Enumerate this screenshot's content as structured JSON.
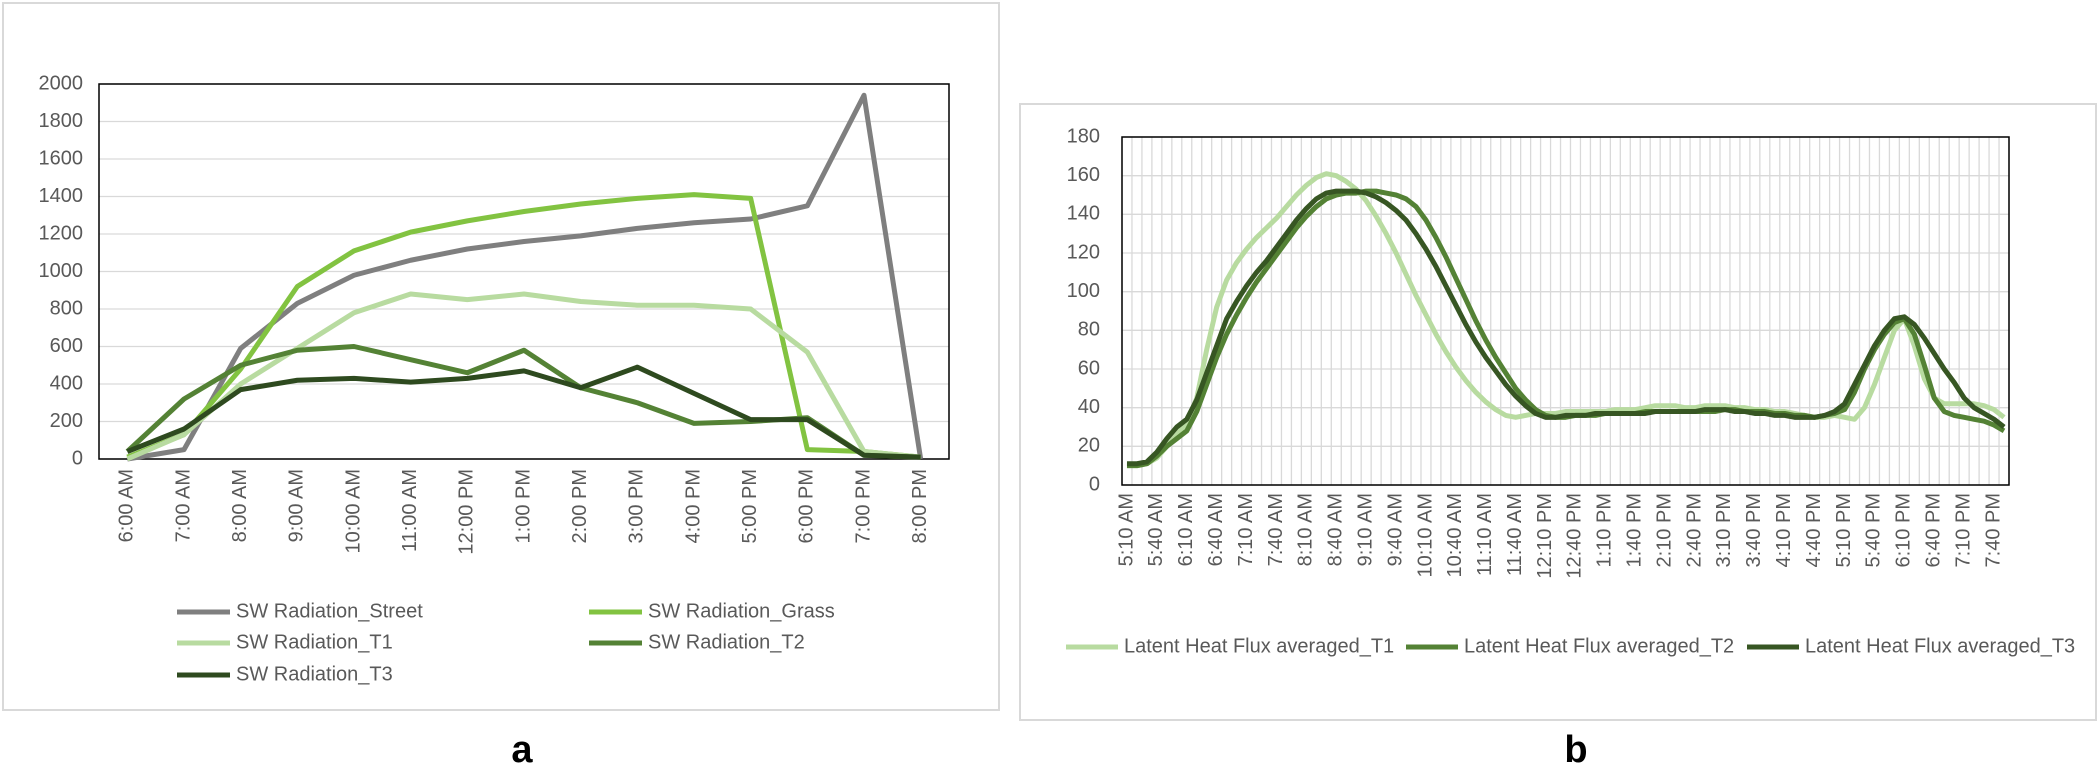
{
  "chart_data": [
    {
      "type": "line",
      "categories": [
        "6:00 AM",
        "7:00 AM",
        "8:00 AM",
        "9:00 AM",
        "10:00 AM",
        "11:00 AM",
        "12:00 PM",
        "1:00 PM",
        "2:00 PM",
        "3:00 PM",
        "4:00 PM",
        "5:00 PM",
        "6:00 PM",
        "7:00 PM",
        "8:00 PM"
      ],
      "series": [
        {
          "name": "SW Radiation_Street",
          "color": "#7f7f7f",
          "values": [
            0,
            50,
            590,
            830,
            980,
            1060,
            1120,
            1160,
            1190,
            1230,
            1260,
            1280,
            1350,
            1940,
            0
          ]
        },
        {
          "name": "SW Radiation_Grass",
          "color": "#82c341",
          "values": [
            10,
            130,
            480,
            920,
            1110,
            1210,
            1270,
            1320,
            1360,
            1390,
            1410,
            1390,
            50,
            40,
            10
          ]
        },
        {
          "name": "SW Radiation_T1",
          "color": "#b8dba0",
          "values": [
            0,
            130,
            400,
            590,
            780,
            880,
            850,
            880,
            840,
            820,
            820,
            800,
            570,
            40,
            10
          ]
        },
        {
          "name": "SW Radiation_T2",
          "color": "#548235",
          "values": [
            40,
            320,
            500,
            580,
            600,
            530,
            460,
            580,
            380,
            300,
            190,
            200,
            220,
            20,
            10
          ]
        },
        {
          "name": "SW Radiation_T3",
          "color": "#2e4a1f",
          "values": [
            40,
            160,
            370,
            420,
            430,
            410,
            430,
            470,
            380,
            490,
            350,
            210,
            210,
            20,
            10
          ]
        }
      ],
      "ylim": [
        0,
        2000
      ],
      "yticks": [
        0,
        200,
        400,
        600,
        800,
        1000,
        1200,
        1400,
        1600,
        1800,
        2000
      ],
      "grid": true,
      "legend": "bottom"
    },
    {
      "type": "line",
      "categories": [
        "5:10 AM",
        null,
        null,
        "5:40 AM",
        null,
        null,
        "6:10 AM",
        null,
        null,
        "6:40 AM",
        null,
        null,
        "7:10 AM",
        null,
        null,
        "7:40 AM",
        null,
        null,
        "8:10 AM",
        null,
        null,
        "8:40 AM",
        null,
        null,
        "9:10 AM",
        null,
        null,
        "9:40 AM",
        null,
        null,
        "10:10 AM",
        null,
        null,
        "10:40 AM",
        null,
        null,
        "11:10 AM",
        null,
        null,
        "11:40 AM",
        null,
        null,
        "12:10 PM",
        null,
        null,
        "12:40 PM",
        null,
        null,
        "1:10 PM",
        null,
        null,
        "1:40 PM",
        null,
        null,
        "2:10 PM",
        null,
        null,
        "2:40 PM",
        null,
        null,
        "3:10 PM",
        null,
        null,
        "3:40 PM",
        null,
        null,
        "4:10 PM",
        null,
        null,
        "4:40 PM",
        null,
        null,
        "5:10 PM",
        null,
        null,
        "5:40 PM",
        null,
        null,
        "6:10 PM",
        null,
        null,
        "6:40 PM",
        null,
        null,
        "7:10 PM",
        null,
        null,
        "7:40 PM",
        null
      ],
      "series": [
        {
          "name": "Latent Heat Flux averaged_T1",
          "color": "#b8dba0",
          "values": [
            10,
            10,
            11,
            14,
            20,
            26,
            32,
            45,
            70,
            92,
            106,
            115,
            122,
            128,
            133,
            138,
            144,
            150,
            155,
            159,
            161,
            160,
            157,
            153,
            147,
            139,
            130,
            120,
            109,
            98,
            88,
            78,
            69,
            61,
            54,
            48,
            43,
            39,
            36,
            35,
            36,
            37,
            37,
            37,
            38,
            38,
            38,
            38,
            38,
            39,
            39,
            39,
            40,
            41,
            41,
            41,
            40,
            40,
            41,
            41,
            41,
            40,
            40,
            39,
            39,
            38,
            38,
            37,
            36,
            35,
            35,
            36,
            35,
            34,
            40,
            52,
            66,
            80,
            86,
            72,
            55,
            45,
            42,
            42,
            42,
            42,
            41,
            39,
            35
          ]
        },
        {
          "name": "Latent Heat Flux averaged_T2",
          "color": "#548235",
          "values": [
            10,
            10,
            11,
            15,
            20,
            24,
            28,
            38,
            52,
            66,
            78,
            88,
            97,
            105,
            112,
            119,
            126,
            133,
            139,
            144,
            148,
            150,
            151,
            151,
            152,
            152,
            151,
            150,
            148,
            144,
            137,
            128,
            118,
            107,
            96,
            85,
            75,
            66,
            58,
            50,
            44,
            39,
            36,
            35,
            35,
            36,
            36,
            36,
            37,
            37,
            37,
            37,
            38,
            38,
            38,
            38,
            38,
            38,
            38,
            38,
            39,
            39,
            38,
            38,
            38,
            37,
            37,
            36,
            36,
            35,
            36,
            37,
            39,
            48,
            60,
            70,
            78,
            84,
            86,
            78,
            62,
            45,
            38,
            36,
            35,
            34,
            33,
            31,
            28
          ]
        },
        {
          "name": "Latent Heat Flux averaged_T3",
          "color": "#375623",
          "values": [
            11,
            11,
            12,
            17,
            24,
            30,
            34,
            44,
            58,
            72,
            86,
            95,
            103,
            110,
            116,
            123,
            130,
            137,
            143,
            148,
            151,
            152,
            152,
            152,
            151,
            149,
            146,
            142,
            137,
            130,
            122,
            113,
            103,
            93,
            83,
            74,
            66,
            59,
            52,
            46,
            41,
            37,
            35,
            35,
            36,
            36,
            36,
            37,
            37,
            37,
            37,
            37,
            37,
            38,
            38,
            38,
            38,
            38,
            39,
            39,
            39,
            38,
            38,
            37,
            37,
            36,
            36,
            35,
            35,
            35,
            36,
            38,
            42,
            52,
            62,
            72,
            80,
            86,
            87,
            83,
            76,
            68,
            60,
            53,
            45,
            40,
            37,
            34,
            30
          ]
        }
      ],
      "ylim": [
        0,
        180
      ],
      "yticks": [
        0,
        20,
        40,
        60,
        80,
        100,
        120,
        140,
        160,
        180
      ],
      "grid": true,
      "xgrid": true,
      "legend": "bottom"
    }
  ],
  "panel_labels": [
    "a",
    "b"
  ]
}
